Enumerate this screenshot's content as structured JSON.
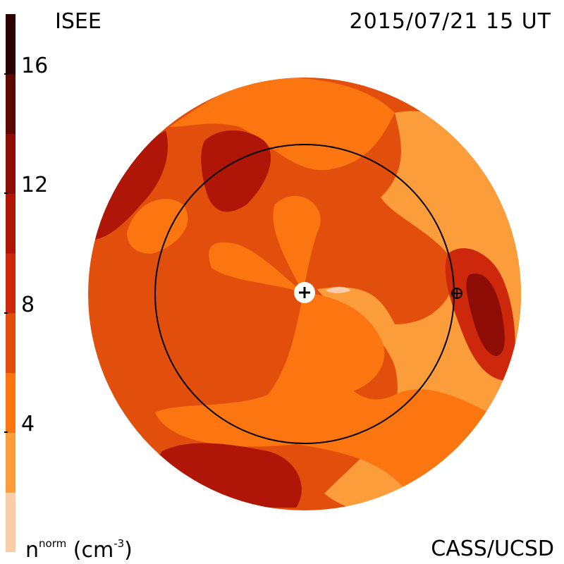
{
  "header": {
    "left_title": "ISEE",
    "right_title": "2015/07/21 15 UT"
  },
  "footer": {
    "quantity": "n",
    "quantity_sup": "norm",
    "unit_open": "(cm",
    "unit_sup": "-3",
    "unit_close": ")",
    "credit": "CASS/UCSD"
  },
  "chart_data": {
    "type": "heatmap",
    "title": "",
    "colorbar": {
      "min": 0,
      "max": 18,
      "tick_values": [
        4,
        8,
        12,
        16
      ],
      "tick_labels": [
        "4",
        "8",
        "12",
        "16"
      ],
      "levels": [
        {
          "from": 0,
          "to": 2,
          "color": "#f9ccaa"
        },
        {
          "from": 2,
          "to": 4,
          "color": "#fc9d3c"
        },
        {
          "from": 4,
          "to": 6,
          "color": "#fb7510"
        },
        {
          "from": 6,
          "to": 8,
          "color": "#e24f0d"
        },
        {
          "from": 8,
          "to": 10,
          "color": "#cd280c"
        },
        {
          "from": 10,
          "to": 12,
          "color": "#b01608"
        },
        {
          "from": 12,
          "to": 14,
          "color": "#8e0d06"
        },
        {
          "from": 14,
          "to": 16,
          "color": "#5e0a04"
        },
        {
          "from": 16,
          "to": 18,
          "color": "#290200"
        }
      ]
    },
    "markers": [
      {
        "name": "Sun",
        "symbol": "+"
      },
      {
        "name": "Earth",
        "symbol": "⊕"
      }
    ],
    "orbit": "1 AU circle"
  }
}
